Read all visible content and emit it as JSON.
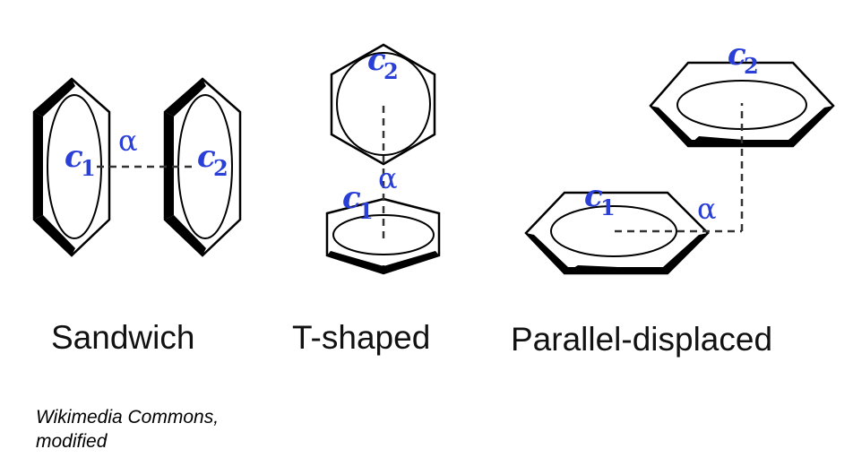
{
  "diagram": {
    "colors": {
      "label": "#2a3fd6",
      "outline": "#000000",
      "background": "#ffffff"
    },
    "configurations": [
      {
        "caption": "Sandwich",
        "c1": "c",
        "c1_sub": "1",
        "c2": "c",
        "c2_sub": "2",
        "angle": "α"
      },
      {
        "caption": "T-shaped",
        "c1": "c",
        "c1_sub": "1",
        "c2": "c",
        "c2_sub": "2",
        "angle": "α"
      },
      {
        "caption": "Parallel-displaced",
        "c1": "c",
        "c1_sub": "1",
        "c2": "c",
        "c2_sub": "2",
        "angle": "α"
      }
    ]
  },
  "credit": {
    "line1": "Wikimedia Commons,",
    "line2": "modified"
  }
}
